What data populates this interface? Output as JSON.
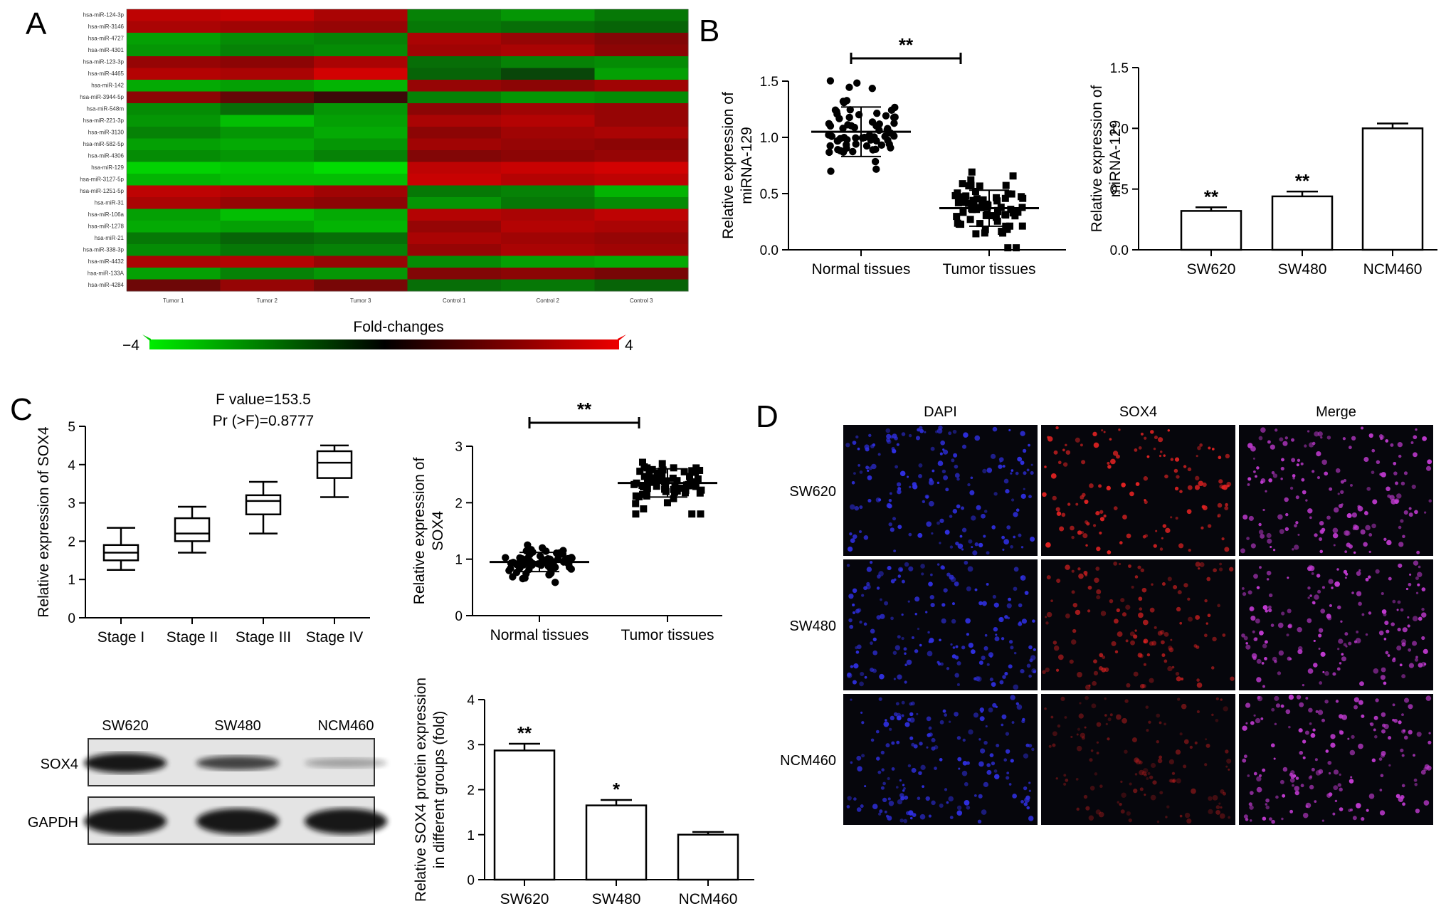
{
  "panel_letters": [
    "A",
    "B",
    "C",
    "D"
  ],
  "heatmap": {
    "rows": [
      "hsa-miR-124-3p",
      "hsa-miR-3146",
      "hsa-miR-4727",
      "hsa-miR-4301",
      "hsa-miR-123-3p",
      "hsa-miR-4465",
      "hsa-miR-142",
      "hsa-miR-3944-5p",
      "hsa-miR-548m",
      "hsa-miR-221-3p",
      "hsa-miR-3130",
      "hsa-miR-582-5p",
      "hsa-miR-4306",
      "hsa-miR-129",
      "hsa-miR-3127-5p",
      "hsa-miR-1251-5p",
      "hsa-miR-31",
      "hsa-miR-106a",
      "hsa-miR-1278",
      "hsa-miR-21",
      "hsa-miR-338-3p",
      "hsa-miR-4432",
      "hsa-miR-133A",
      "hsa-miR-4284"
    ],
    "columns": [
      "Tumor 1",
      "Tumor 2",
      "Tumor 3",
      "Control 1",
      "Control 2",
      "Control 3"
    ],
    "values": [
      [
        3.0,
        3.2,
        2.6,
        -1.8,
        -2.2,
        -1.6
      ],
      [
        2.6,
        2.4,
        2.2,
        -1.6,
        -1.4,
        -1.2
      ],
      [
        -2.4,
        -2.0,
        -1.8,
        2.6,
        2.2,
        1.8
      ],
      [
        -2.2,
        -1.8,
        -2.0,
        2.4,
        2.6,
        2.0
      ],
      [
        2.2,
        2.0,
        2.6,
        -1.4,
        -1.8,
        -2.0
      ],
      [
        2.8,
        2.6,
        3.4,
        -1.2,
        -0.6,
        -2.4
      ],
      [
        -2.6,
        -2.4,
        -2.8,
        2.2,
        2.0,
        2.4
      ],
      [
        2.0,
        1.2,
        0.4,
        -1.8,
        -2.2,
        -2.0
      ],
      [
        -2.0,
        -1.4,
        -2.2,
        2.0,
        2.4,
        2.2
      ],
      [
        -2.2,
        -3.0,
        -2.4,
        2.6,
        2.8,
        2.2
      ],
      [
        -1.8,
        -2.2,
        -2.6,
        2.0,
        2.4,
        2.6
      ],
      [
        -2.4,
        -2.6,
        -2.2,
        2.4,
        2.2,
        2.0
      ],
      [
        -2.0,
        -2.2,
        -1.8,
        1.8,
        2.0,
        2.2
      ],
      [
        -3.4,
        -3.2,
        -3.6,
        3.0,
        3.2,
        3.4
      ],
      [
        -2.8,
        -3.0,
        -3.0,
        3.2,
        2.8,
        3.0
      ],
      [
        3.0,
        2.8,
        2.4,
        -1.6,
        -1.8,
        -2.8
      ],
      [
        2.6,
        2.2,
        2.0,
        -2.2,
        -1.6,
        -2.0
      ],
      [
        -2.4,
        -3.0,
        -2.6,
        2.8,
        2.6,
        3.0
      ],
      [
        -2.6,
        -2.4,
        -2.8,
        2.2,
        2.8,
        2.6
      ],
      [
        -1.6,
        -1.2,
        -1.4,
        2.6,
        2.4,
        2.2
      ],
      [
        -2.0,
        -1.6,
        -1.8,
        2.2,
        2.6,
        2.4
      ],
      [
        2.6,
        2.8,
        2.2,
        -2.0,
        -2.4,
        -2.6
      ],
      [
        -2.4,
        -1.8,
        -2.2,
        1.8,
        2.0,
        1.6
      ],
      [
        1.4,
        2.2,
        1.6,
        -1.4,
        -1.6,
        -1.2
      ]
    ],
    "colorbar": {
      "title": "Fold-changes",
      "min_label": "−4",
      "max_label": "4",
      "min": -4,
      "max": 4,
      "low_color": "#00ee00",
      "mid_color": "#000000",
      "high_color": "#ee0000"
    }
  },
  "panel_b_left": {
    "ylabel_lines": [
      "Relative expression of",
      "miRNA-129"
    ],
    "ylim": [
      0,
      1.5
    ],
    "yticks": [
      "0.0",
      "0.5",
      "1.0",
      "1.5"
    ],
    "groups": [
      "Normal tissues",
      "Tumor tissues"
    ],
    "means": [
      1.05,
      0.37
    ],
    "sd": [
      0.22,
      0.16
    ],
    "n": [
      70,
      70
    ],
    "significance": "**"
  },
  "panel_b_right": {
    "ylabel_lines": [
      "Relative expression of",
      "miRNA-129"
    ],
    "ylim": [
      0,
      1.5
    ],
    "yticks": [
      "0.0",
      "0.5",
      "1.0",
      "1.5"
    ],
    "categories": [
      "SW620",
      "SW480",
      "NCM460"
    ],
    "values": [
      0.32,
      0.44,
      1.0
    ],
    "errors": [
      0.03,
      0.04,
      0.04
    ],
    "significance": [
      "**",
      "**",
      ""
    ]
  },
  "panel_c_box": {
    "stats": [
      "F value=153.5",
      "Pr (>F)=0.8777"
    ],
    "ylabel": "Relative expression of SOX4",
    "ylim": [
      0,
      5
    ],
    "yticks": [
      "0",
      "1",
      "2",
      "3",
      "4",
      "5"
    ],
    "categories": [
      "Stage I",
      "Stage II",
      "Stage III",
      "Stage IV"
    ],
    "boxes": [
      {
        "min": 1.25,
        "q1": 1.5,
        "median": 1.7,
        "q3": 1.9,
        "max": 2.35
      },
      {
        "min": 1.7,
        "q1": 2.0,
        "median": 2.2,
        "q3": 2.6,
        "max": 2.9
      },
      {
        "min": 2.2,
        "q1": 2.7,
        "median": 3.05,
        "q3": 3.2,
        "max": 3.55
      },
      {
        "min": 3.15,
        "q1": 3.65,
        "median": 4.05,
        "q3": 4.35,
        "max": 4.5
      }
    ]
  },
  "panel_c_scatter": {
    "ylabel_lines": [
      "Relative expression of",
      "SOX4"
    ],
    "ylim": [
      0,
      3
    ],
    "yticks": [
      "0",
      "1",
      "2",
      "3"
    ],
    "groups": [
      "Normal tissues",
      "Tumor tissues"
    ],
    "means": [
      0.95,
      2.35
    ],
    "sd": [
      0.17,
      0.25
    ],
    "n": [
      70,
      70
    ],
    "significance": "**"
  },
  "panel_c_blot": {
    "columns": [
      "SW620",
      "SW480",
      "NCM460"
    ],
    "rows": [
      "SOX4",
      "GAPDH"
    ],
    "intensity": [
      [
        0.95,
        0.75,
        0.3
      ],
      [
        0.95,
        0.95,
        0.95
      ]
    ]
  },
  "panel_c_bar": {
    "ylabel_lines": [
      "Relative SOX4 protein expression",
      "in different groups (fold)"
    ],
    "ylim": [
      0,
      4
    ],
    "yticks": [
      "0",
      "1",
      "2",
      "3",
      "4"
    ],
    "categories": [
      "SW620",
      "SW480",
      "NCM460"
    ],
    "values": [
      2.87,
      1.65,
      1.0
    ],
    "errors": [
      0.15,
      0.12,
      0.06
    ],
    "significance": [
      "**",
      "*",
      ""
    ]
  },
  "panel_d": {
    "columns": [
      "DAPI",
      "SOX4",
      "Merge"
    ],
    "rows": [
      "SW620",
      "SW480",
      "NCM460"
    ],
    "channel_colors": [
      "#2f2fe0",
      "#e02222",
      "#c03ad0"
    ]
  }
}
